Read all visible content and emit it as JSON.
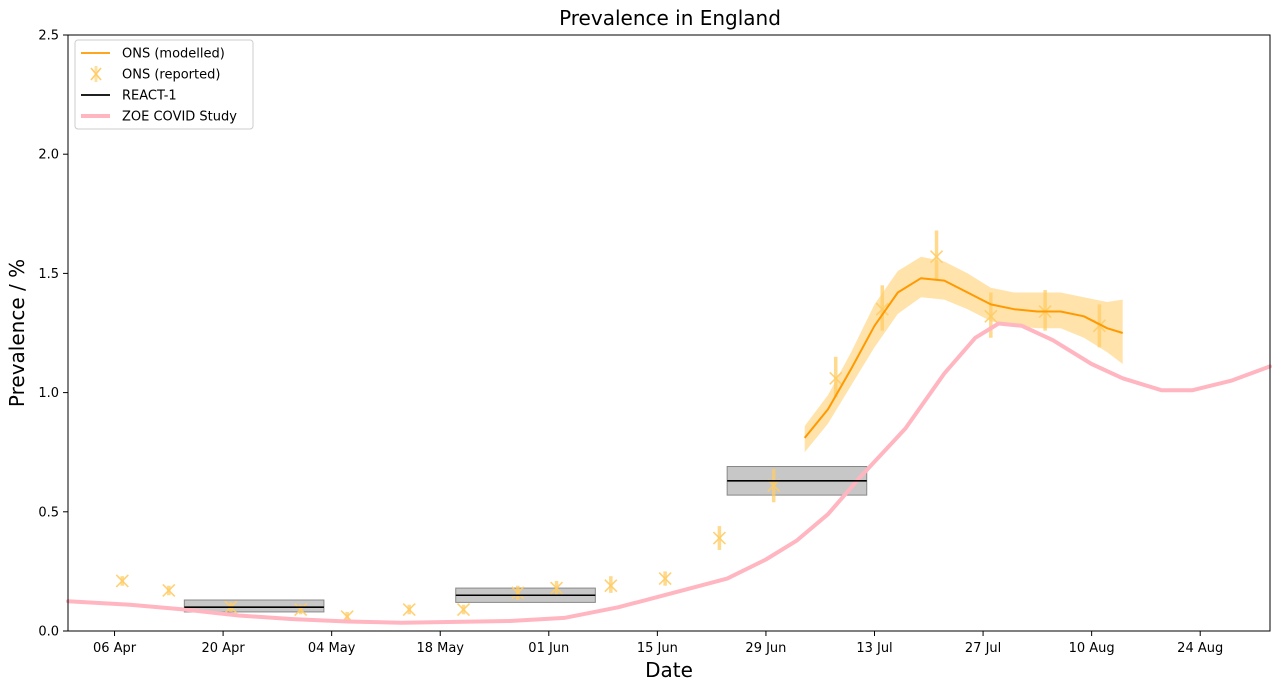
{
  "chart_data": {
    "type": "line",
    "title": "Prevalence in England",
    "xlabel": "Date",
    "ylabel": "Prevalence / %",
    "xlim": [
      "2021-03-31",
      "2021-09-02"
    ],
    "ylim": [
      0,
      2.5
    ],
    "grid": false,
    "legend_position": "top-left",
    "x_ticks": [
      {
        "date": "2021-04-06",
        "label": "06 Apr"
      },
      {
        "date": "2021-04-20",
        "label": "20 Apr"
      },
      {
        "date": "2021-05-04",
        "label": "04 May"
      },
      {
        "date": "2021-05-18",
        "label": "18 May"
      },
      {
        "date": "2021-06-01",
        "label": "01 Jun"
      },
      {
        "date": "2021-06-15",
        "label": "15 Jun"
      },
      {
        "date": "2021-06-29",
        "label": "29 Jun"
      },
      {
        "date": "2021-07-13",
        "label": "13 Jul"
      },
      {
        "date": "2021-07-27",
        "label": "27 Jul"
      },
      {
        "date": "2021-08-10",
        "label": "10 Aug"
      },
      {
        "date": "2021-08-24",
        "label": "24 Aug"
      }
    ],
    "y_ticks": [
      {
        "value": 0.0,
        "label": "0.0"
      },
      {
        "value": 0.5,
        "label": "0.5"
      },
      {
        "value": 1.0,
        "label": "1.0"
      },
      {
        "value": 1.5,
        "label": "1.5"
      },
      {
        "value": 2.0,
        "label": "2.0"
      },
      {
        "value": 2.5,
        "label": "2.5"
      }
    ],
    "legend": [
      {
        "label": "ONS (modelled)",
        "color": "#FF9900",
        "style": "line"
      },
      {
        "label": "ONS (reported)",
        "color": "#FFCC66",
        "style": "x-marker"
      },
      {
        "label": "REACT-1",
        "color": "#000000",
        "style": "line"
      },
      {
        "label": "ZOE COVID Study",
        "color": "#FFB6C1",
        "style": "thick-line"
      }
    ],
    "series": [
      {
        "name": "ZOE COVID Study",
        "color": "#FFB6C1",
        "points": [
          [
            "2021-03-31",
            0.125
          ],
          [
            "2021-04-08",
            0.11
          ],
          [
            "2021-04-15",
            0.09
          ],
          [
            "2021-04-22",
            0.065
          ],
          [
            "2021-04-29",
            0.05
          ],
          [
            "2021-05-06",
            0.04
          ],
          [
            "2021-05-13",
            0.035
          ],
          [
            "2021-05-20",
            0.038
          ],
          [
            "2021-05-27",
            0.042
          ],
          [
            "2021-06-03",
            0.055
          ],
          [
            "2021-06-10",
            0.1
          ],
          [
            "2021-06-17",
            0.16
          ],
          [
            "2021-06-24",
            0.22
          ],
          [
            "2021-06-29",
            0.3
          ],
          [
            "2021-07-03",
            0.38
          ],
          [
            "2021-07-07",
            0.49
          ],
          [
            "2021-07-11",
            0.64
          ],
          [
            "2021-07-17",
            0.85
          ],
          [
            "2021-07-22",
            1.08
          ],
          [
            "2021-07-26",
            1.23
          ],
          [
            "2021-07-29",
            1.29
          ],
          [
            "2021-08-01",
            1.28
          ],
          [
            "2021-08-05",
            1.22
          ],
          [
            "2021-08-10",
            1.12
          ],
          [
            "2021-08-14",
            1.06
          ],
          [
            "2021-08-19",
            1.01
          ],
          [
            "2021-08-23",
            1.01
          ],
          [
            "2021-08-28",
            1.05
          ],
          [
            "2021-09-02",
            1.11
          ]
        ]
      },
      {
        "name": "ONS (modelled)",
        "color": "#FF9900",
        "band_color": "#FFCC66",
        "points": [
          [
            "2021-07-04",
            0.81,
            0.75,
            0.86
          ],
          [
            "2021-07-07",
            0.93,
            0.87,
            0.99
          ],
          [
            "2021-07-10",
            1.1,
            1.03,
            1.17
          ],
          [
            "2021-07-13",
            1.28,
            1.19,
            1.37
          ],
          [
            "2021-07-16",
            1.42,
            1.33,
            1.51
          ],
          [
            "2021-07-19",
            1.48,
            1.4,
            1.57
          ],
          [
            "2021-07-22",
            1.47,
            1.39,
            1.55
          ],
          [
            "2021-07-25",
            1.42,
            1.35,
            1.5
          ],
          [
            "2021-07-28",
            1.37,
            1.3,
            1.44
          ],
          [
            "2021-07-31",
            1.35,
            1.28,
            1.42
          ],
          [
            "2021-08-03",
            1.34,
            1.27,
            1.42
          ],
          [
            "2021-08-06",
            1.34,
            1.27,
            1.42
          ],
          [
            "2021-08-09",
            1.32,
            1.23,
            1.4
          ],
          [
            "2021-08-12",
            1.27,
            1.17,
            1.38
          ],
          [
            "2021-08-14",
            1.25,
            1.12,
            1.39
          ]
        ]
      },
      {
        "name": "ONS (reported)",
        "color": "#FFCC66",
        "points": [
          [
            "2021-04-07",
            0.21,
            0.19,
            0.23
          ],
          [
            "2021-04-13",
            0.17,
            0.15,
            0.19
          ],
          [
            "2021-04-21",
            0.1,
            0.08,
            0.12
          ],
          [
            "2021-04-30",
            0.09,
            0.07,
            0.11
          ],
          [
            "2021-05-06",
            0.06,
            0.04,
            0.08
          ],
          [
            "2021-05-14",
            0.09,
            0.07,
            0.11
          ],
          [
            "2021-05-21",
            0.09,
            0.07,
            0.11
          ],
          [
            "2021-05-28",
            0.16,
            0.13,
            0.19
          ],
          [
            "2021-06-02",
            0.18,
            0.15,
            0.21
          ],
          [
            "2021-06-09",
            0.19,
            0.16,
            0.23
          ],
          [
            "2021-06-16",
            0.22,
            0.19,
            0.25
          ],
          [
            "2021-06-23",
            0.39,
            0.34,
            0.44
          ],
          [
            "2021-06-30",
            0.61,
            0.54,
            0.68
          ],
          [
            "2021-07-08",
            1.06,
            0.98,
            1.15
          ],
          [
            "2021-07-14",
            1.35,
            1.26,
            1.45
          ],
          [
            "2021-07-21",
            1.57,
            1.47,
            1.68
          ],
          [
            "2021-07-28",
            1.32,
            1.23,
            1.42
          ],
          [
            "2021-08-04",
            1.34,
            1.26,
            1.43
          ],
          [
            "2021-08-11",
            1.28,
            1.19,
            1.37
          ]
        ]
      },
      {
        "name": "REACT-1",
        "color": "#000000",
        "segments": [
          {
            "start": "2021-04-15",
            "end": "2021-05-03",
            "value": 0.1,
            "low": 0.08,
            "high": 0.13
          },
          {
            "start": "2021-05-20",
            "end": "2021-06-07",
            "value": 0.15,
            "low": 0.12,
            "high": 0.18
          },
          {
            "start": "2021-06-24",
            "end": "2021-07-12",
            "value": 0.63,
            "low": 0.57,
            "high": 0.69
          }
        ]
      }
    ]
  }
}
